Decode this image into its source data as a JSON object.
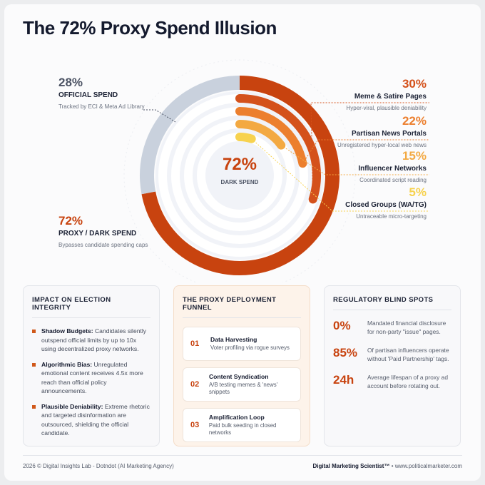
{
  "header": {
    "title": "The 72% Proxy Spend Illusion"
  },
  "chart_data": {
    "type": "radial",
    "center_label": "72%",
    "center_caption": "DARK SPEND",
    "outer": {
      "categories": [
        "OFFICIAL SPEND",
        "PROXY / DARK SPEND"
      ],
      "values": [
        28,
        72
      ],
      "value_labels": [
        "28%",
        "72%"
      ],
      "notes": [
        "Tracked by ECI & Meta Ad Library",
        "Bypasses candidate spending caps"
      ],
      "colors": [
        "#c9d1dd",
        "#c8430f"
      ]
    },
    "inner": {
      "categories": [
        "Meme & Satire Pages",
        "Partisan News Portals",
        "Influencer Networks",
        "Closed Groups (WA/TG)"
      ],
      "values": [
        30,
        22,
        15,
        5
      ],
      "value_labels": [
        "30%",
        "22%",
        "15%",
        "5%"
      ],
      "notes": [
        "Hyper-viral, plausible deniability",
        "Unregistered hyper-local web news",
        "Coordinated script reading",
        "Untraceable micro-targeting"
      ],
      "colors": [
        "#d4511b",
        "#ec7f2e",
        "#f3a942",
        "#f7d24f"
      ]
    }
  },
  "impact": {
    "title": "IMPACT ON ELECTION INTEGRITY",
    "items": [
      {
        "term": "Shadow Budgets:",
        "text": "Candidates silently outspend official limits by up to 10x using decentralized proxy networks."
      },
      {
        "term": "Algorithmic Bias:",
        "text": "Unregulated emotional content receives 4.5x more reach than official policy announcements."
      },
      {
        "term": "Plausible Deniability:",
        "text": "Extreme rhetoric and targeted disinformation are outsourced, shielding the official candidate."
      }
    ]
  },
  "funnel": {
    "title": "THE PROXY DEPLOYMENT FUNNEL",
    "steps": [
      {
        "number": "01",
        "title": "Data Harvesting",
        "text": "Voter profiling via rogue surveys"
      },
      {
        "number": "02",
        "title": "Content Syndication",
        "text": "A/B testing memes & 'news' snippets"
      },
      {
        "number": "03",
        "title": "Amplification Loop",
        "text": "Paid bulk seeding in closed networks"
      }
    ]
  },
  "blind_spots": {
    "title": "REGULATORY BLIND SPOTS",
    "items": [
      {
        "value": "0%",
        "text": "Mandated financial disclosure for non-party \"issue\" pages."
      },
      {
        "value": "85%",
        "text": "Of partisan influencers operate without 'Paid Partnership' tags."
      },
      {
        "value": "24h",
        "text": "Average lifespan of a proxy ad account before rotating out."
      }
    ]
  },
  "footer": {
    "left": "2026 © Digital Insights Lab - Dotndot (AI Marketing Agency)",
    "brand": "Digital Marketing Scientist™",
    "url": "• www.politicalmarketer.com"
  }
}
